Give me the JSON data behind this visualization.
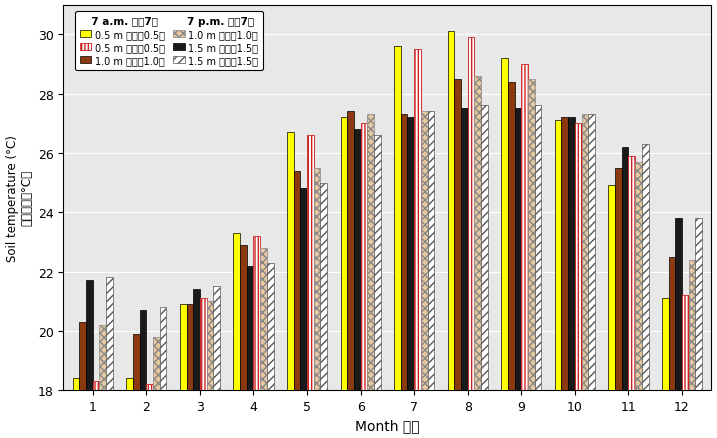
{
  "months": [
    1,
    2,
    3,
    4,
    5,
    6,
    7,
    8,
    9,
    10,
    11,
    12
  ],
  "am_0_5": [
    18.4,
    18.4,
    20.9,
    23.3,
    26.7,
    27.2,
    29.6,
    30.1,
    29.2,
    27.1,
    24.9,
    21.1
  ],
  "am_1_0": [
    20.3,
    19.9,
    20.9,
    22.9,
    25.4,
    27.4,
    27.3,
    28.5,
    28.4,
    27.2,
    25.5,
    22.5
  ],
  "am_1_5": [
    21.7,
    20.7,
    21.4,
    22.2,
    24.8,
    26.8,
    27.2,
    27.5,
    27.5,
    27.2,
    26.2,
    23.8
  ],
  "pm_0_5": [
    18.3,
    18.2,
    21.1,
    23.2,
    26.6,
    27.0,
    29.5,
    29.9,
    29.0,
    27.0,
    25.9,
    21.2
  ],
  "pm_1_0": [
    20.2,
    19.8,
    21.0,
    22.8,
    25.5,
    27.3,
    27.4,
    28.6,
    28.5,
    27.3,
    25.7,
    22.4
  ],
  "pm_1_5": [
    21.8,
    20.8,
    21.5,
    22.3,
    25.0,
    26.6,
    27.4,
    27.6,
    27.6,
    27.3,
    26.3,
    23.8
  ],
  "color_am_0_5": "#FFFF00",
  "color_am_1_0": "#8B3A0F",
  "color_am_1_5": "#1a1a1a",
  "ylabel_en": "Soil temperature (°C)",
  "ylabel_zh": "土壤溫度（°C）",
  "xlabel": "Month 月份",
  "ylim_min": 18,
  "ylim_max": 31,
  "yticks": [
    18,
    20,
    22,
    24,
    26,
    28,
    30
  ],
  "title_am": "7 a.m. 上午7時",
  "title_pm": "7 p.m. 下午7時",
  "legend_am_0_5": "0.5 m 地面下0.5米",
  "legend_am_1_0": "1.0 m 地面下1.0米",
  "legend_am_1_5": "1.5 m 地面下1.5米",
  "legend_pm_0_5": "0.5 m 地面下0.5米",
  "legend_pm_1_0": "1.0 m 地面下1.0米",
  "legend_pm_1_5": "1.5 m 地面下1.5米",
  "bar_width": 0.125,
  "bg_color": "#e8e8e8"
}
